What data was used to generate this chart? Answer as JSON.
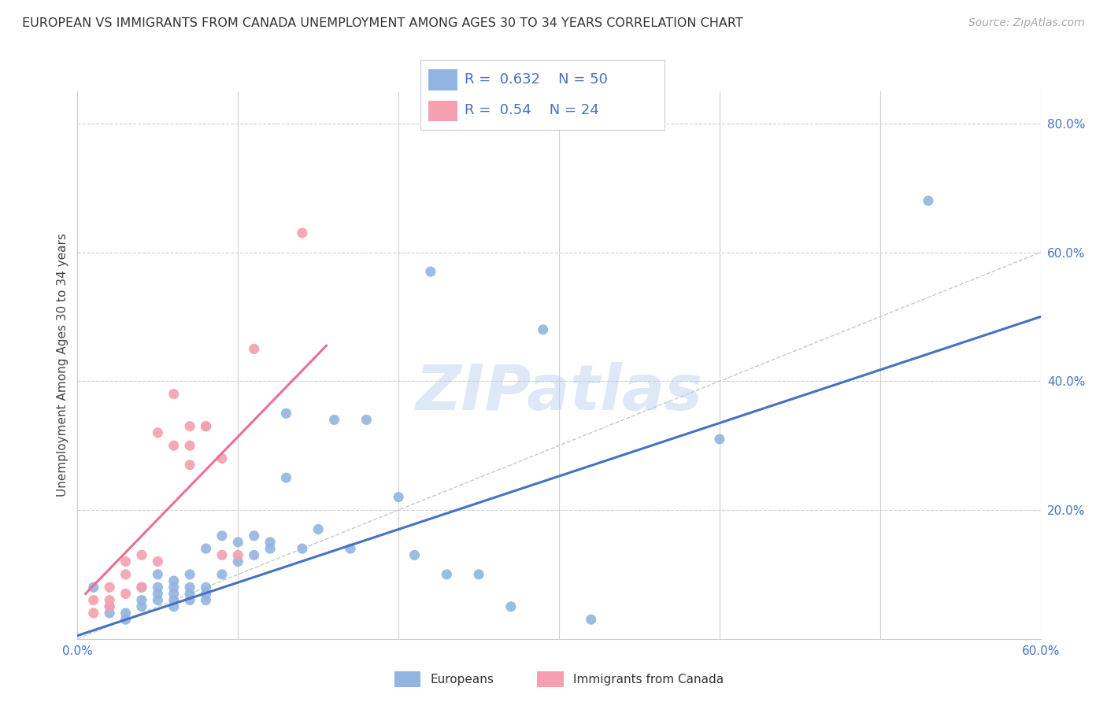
{
  "title": "EUROPEAN VS IMMIGRANTS FROM CANADA UNEMPLOYMENT AMONG AGES 30 TO 34 YEARS CORRELATION CHART",
  "source": "Source: ZipAtlas.com",
  "ylabel": "Unemployment Among Ages 30 to 34 years",
  "xlim": [
    0.0,
    0.6
  ],
  "ylim": [
    0.0,
    0.85
  ],
  "xticks": [
    0.0,
    0.1,
    0.2,
    0.3,
    0.4,
    0.5,
    0.6
  ],
  "yticks": [
    0.0,
    0.2,
    0.4,
    0.6,
    0.8
  ],
  "xtick_labels": [
    "0.0%",
    "",
    "",
    "",
    "",
    "",
    "60.0%"
  ],
  "ytick_labels": [
    "",
    "20.0%",
    "40.0%",
    "60.0%",
    "80.0%"
  ],
  "blue_R": 0.632,
  "blue_N": 50,
  "pink_R": 0.54,
  "pink_N": 24,
  "blue_color": "#92b4e0",
  "pink_color": "#f4a0b0",
  "blue_line_color": "#4472c4",
  "pink_line_color": "#e87090",
  "diag_line_color": "#c8c8c8",
  "watermark": "ZIPatlas",
  "background_color": "#ffffff",
  "grid_color": "#d0d0d0",
  "label_color": "#4472c4",
  "blue_scatter_x": [
    0.01,
    0.02,
    0.02,
    0.03,
    0.03,
    0.04,
    0.04,
    0.04,
    0.05,
    0.05,
    0.05,
    0.05,
    0.06,
    0.06,
    0.06,
    0.06,
    0.06,
    0.07,
    0.07,
    0.07,
    0.07,
    0.08,
    0.08,
    0.08,
    0.08,
    0.09,
    0.09,
    0.1,
    0.1,
    0.11,
    0.11,
    0.12,
    0.12,
    0.13,
    0.13,
    0.14,
    0.15,
    0.16,
    0.17,
    0.18,
    0.2,
    0.21,
    0.22,
    0.23,
    0.25,
    0.27,
    0.29,
    0.32,
    0.4,
    0.53
  ],
  "blue_scatter_y": [
    0.08,
    0.05,
    0.04,
    0.04,
    0.03,
    0.05,
    0.06,
    0.08,
    0.06,
    0.07,
    0.08,
    0.1,
    0.05,
    0.06,
    0.07,
    0.08,
    0.09,
    0.06,
    0.07,
    0.08,
    0.1,
    0.06,
    0.07,
    0.08,
    0.14,
    0.1,
    0.16,
    0.12,
    0.15,
    0.13,
    0.16,
    0.14,
    0.15,
    0.25,
    0.35,
    0.14,
    0.17,
    0.34,
    0.14,
    0.34,
    0.22,
    0.13,
    0.57,
    0.1,
    0.1,
    0.05,
    0.48,
    0.03,
    0.31,
    0.68
  ],
  "pink_scatter_x": [
    0.01,
    0.01,
    0.02,
    0.02,
    0.02,
    0.03,
    0.03,
    0.03,
    0.04,
    0.04,
    0.05,
    0.05,
    0.06,
    0.06,
    0.07,
    0.07,
    0.07,
    0.08,
    0.08,
    0.09,
    0.09,
    0.1,
    0.11,
    0.14
  ],
  "pink_scatter_y": [
    0.04,
    0.06,
    0.05,
    0.06,
    0.08,
    0.07,
    0.1,
    0.12,
    0.08,
    0.13,
    0.12,
    0.32,
    0.3,
    0.38,
    0.27,
    0.3,
    0.33,
    0.33,
    0.33,
    0.13,
    0.28,
    0.13,
    0.45,
    0.63
  ],
  "blue_line_x": [
    0.0,
    0.6
  ],
  "blue_line_y": [
    0.005,
    0.5
  ],
  "pink_line_x": [
    0.005,
    0.155
  ],
  "pink_line_y": [
    0.07,
    0.455
  ]
}
